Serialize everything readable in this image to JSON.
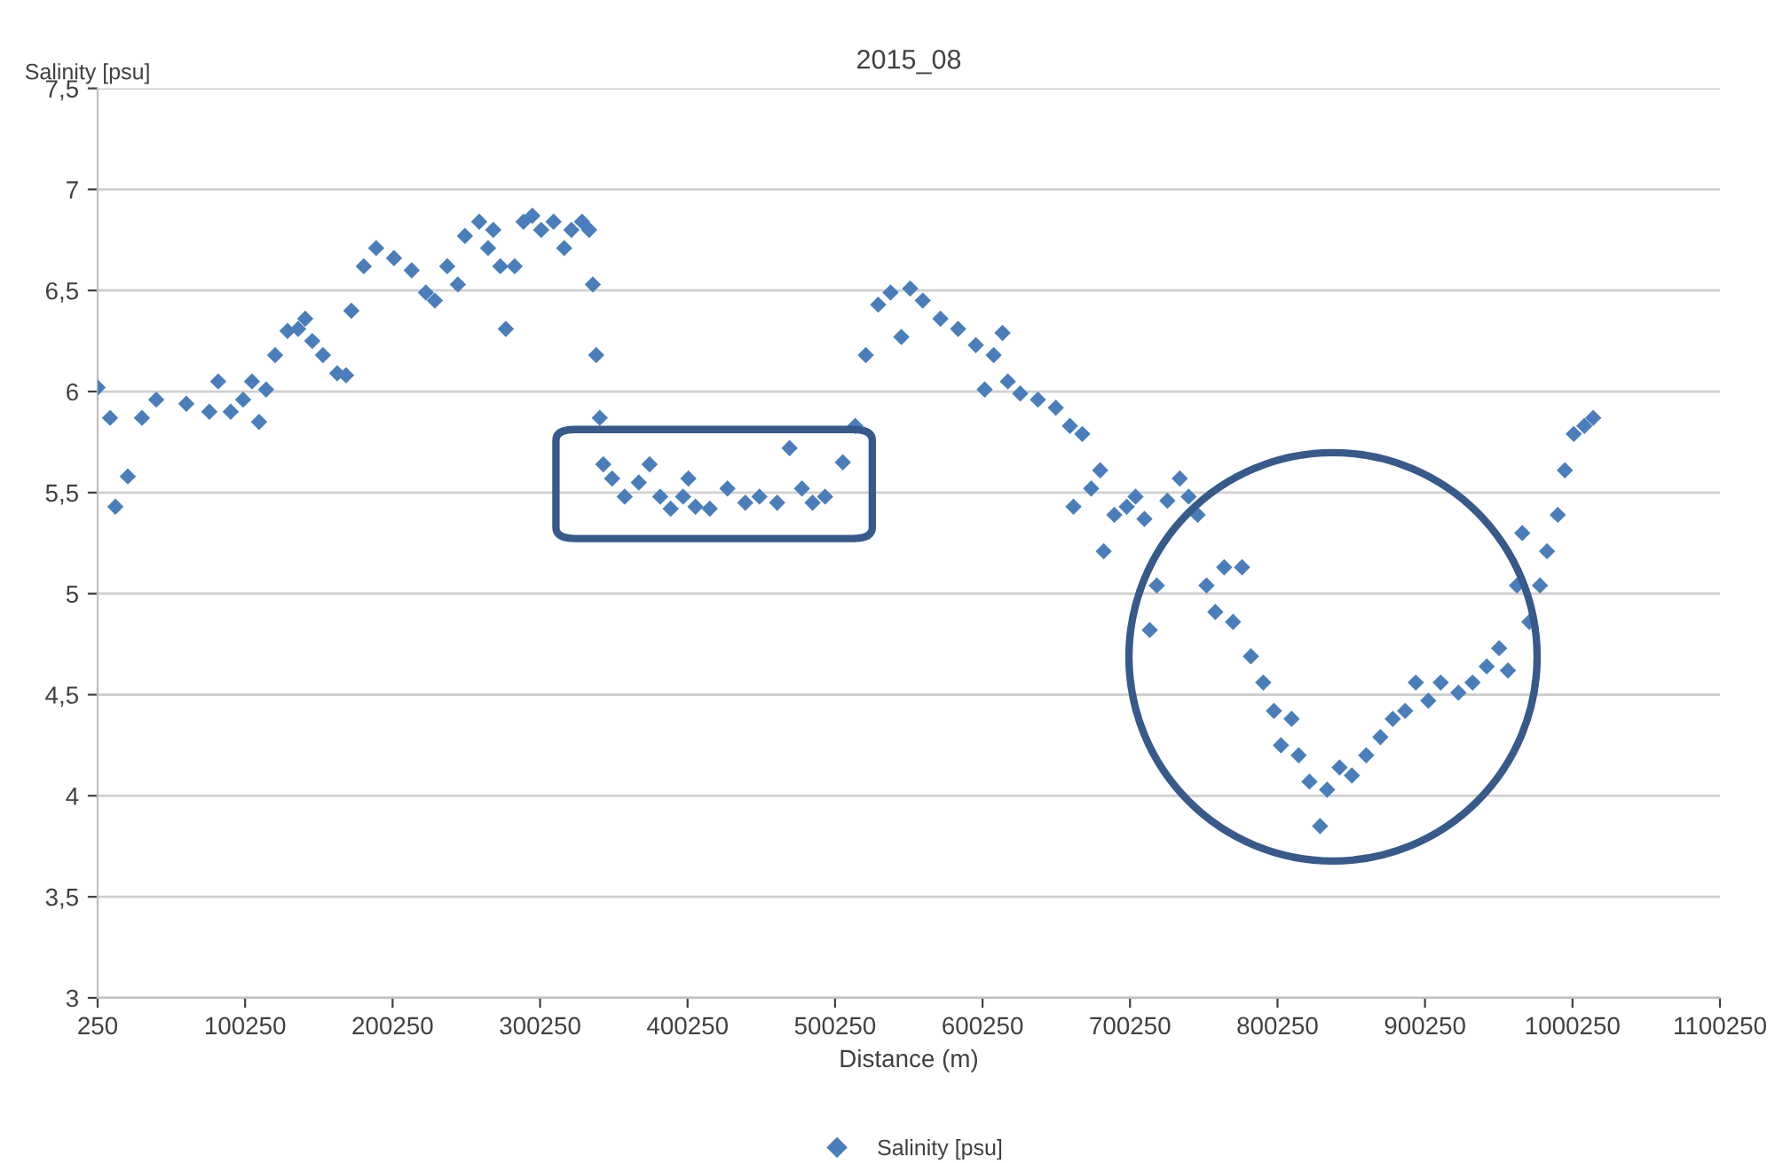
{
  "chart_data": {
    "type": "scatter",
    "title": "2015_08",
    "xlabel": "Distance (m)",
    "ylabel": "Salinity [psu]",
    "x": [
      250,
      8700,
      12300,
      20700,
      30300,
      40000,
      60400,
      76000,
      82000,
      90500,
      98900,
      104900,
      109700,
      114500,
      120600,
      129000,
      136200,
      141000,
      145800,
      153000,
      162700,
      168700,
      172300,
      180700,
      189100,
      201200,
      213200,
      222800,
      228900,
      237300,
      244500,
      249300,
      259000,
      265000,
      268500,
      273300,
      277000,
      283000,
      289000,
      295000,
      301000,
      309400,
      316600,
      321500,
      328700,
      333500,
      336000,
      338300,
      340700,
      343100,
      349100,
      357600,
      367200,
      374500,
      381700,
      388800,
      397200,
      400800,
      405600,
      415300,
      427300,
      439400,
      449000,
      461000,
      469400,
      477800,
      485000,
      493500,
      505500,
      513900,
      521100,
      529500,
      537900,
      545200,
      551200,
      559700,
      571700,
      583700,
      595700,
      601700,
      607800,
      613800,
      617400,
      625800,
      637800,
      649900,
      659500,
      661900,
      667900,
      673900,
      680000,
      682400,
      689600,
      698000,
      704000,
      710000,
      713600,
      718400,
      725600,
      734000,
      740000,
      746100,
      752100,
      758100,
      764100,
      770100,
      776200,
      782200,
      790600,
      797800,
      802600,
      809800,
      814600,
      821900,
      829100,
      833900,
      842300,
      850700,
      860400,
      870000,
      878400,
      886800,
      894000,
      902500,
      910900,
      922900,
      932500,
      942100,
      950500,
      956500,
      962600,
      966200,
      971000,
      978200,
      983000,
      990300,
      995100,
      1001100,
      1008300,
      1014300
    ],
    "series": [
      {
        "name": "Salinity [psu]",
        "color": "#4a7ebb",
        "values": [
          6.02,
          5.87,
          5.43,
          5.58,
          5.87,
          5.96,
          5.94,
          5.9,
          6.05,
          5.9,
          5.96,
          6.05,
          5.85,
          6.01,
          6.18,
          6.3,
          6.31,
          6.36,
          6.25,
          6.18,
          6.09,
          6.08,
          6.4,
          6.62,
          6.71,
          6.66,
          6.6,
          6.49,
          6.45,
          6.62,
          6.53,
          6.77,
          6.84,
          6.71,
          6.8,
          6.62,
          6.31,
          6.62,
          6.84,
          6.87,
          6.8,
          6.84,
          6.71,
          6.8,
          6.84,
          6.8,
          6.53,
          6.18,
          5.87,
          5.64,
          5.57,
          5.48,
          5.55,
          5.64,
          5.48,
          5.42,
          5.48,
          5.57,
          5.43,
          5.42,
          5.52,
          5.45,
          5.48,
          5.45,
          5.72,
          5.52,
          5.45,
          5.48,
          5.65,
          5.83,
          6.18,
          6.43,
          6.49,
          6.27,
          6.51,
          6.45,
          6.36,
          6.31,
          6.23,
          6.01,
          6.18,
          6.29,
          6.05,
          5.99,
          5.96,
          5.92,
          5.83,
          5.43,
          5.79,
          5.52,
          5.61,
          5.21,
          5.39,
          5.43,
          5.48,
          5.37,
          4.82,
          5.04,
          5.46,
          5.57,
          5.48,
          5.39,
          5.04,
          4.91,
          5.13,
          4.86,
          5.13,
          4.69,
          4.56,
          4.42,
          4.25,
          4.38,
          4.2,
          4.07,
          3.85,
          4.03,
          4.14,
          4.1,
          4.2,
          4.29,
          4.38,
          4.42,
          4.56,
          4.47,
          4.56,
          4.51,
          4.56,
          4.64,
          4.73,
          4.62,
          5.04,
          5.3,
          4.86,
          5.04,
          5.21,
          5.39,
          5.61,
          5.79,
          5.83,
          5.87
        ]
      }
    ],
    "xlim": [
      250,
      1100250
    ],
    "xticks": [
      250,
      100250,
      200250,
      300250,
      400250,
      500250,
      600250,
      700250,
      800250,
      900250,
      1000250,
      1100250
    ],
    "ylim": [
      3,
      7.5
    ],
    "yticks": [
      3,
      {
        "value": 3.5,
        "label": "3,5"
      },
      4,
      {
        "value": 4.5,
        "label": "4,5"
      },
      5,
      {
        "value": 5.5,
        "label": "5,5"
      },
      6,
      {
        "value": 6.5,
        "label": "6,5"
      },
      7,
      {
        "value": 7.5,
        "label": "7,5"
      }
    ],
    "grid": "y",
    "legend": "bottom",
    "marker": "diamond"
  }
}
